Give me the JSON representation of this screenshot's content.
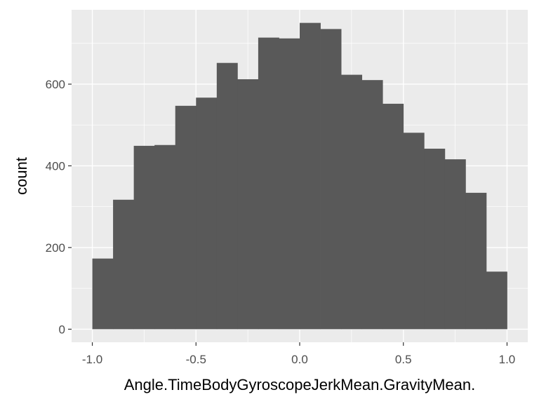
{
  "chart_data": {
    "type": "bar",
    "title": "",
    "xlabel": "Angle.TimeBodyGyroscopeJerkMean.GravityMean.",
    "ylabel": "count",
    "xlim": [
      -1.1,
      1.1
    ],
    "ylim": [
      -32,
      782
    ],
    "bins": [
      {
        "x0": -1.0,
        "x1": -0.9,
        "count": 173
      },
      {
        "x0": -0.9,
        "x1": -0.8,
        "count": 317
      },
      {
        "x0": -0.8,
        "x1": -0.7,
        "count": 449
      },
      {
        "x0": -0.7,
        "x1": -0.6,
        "count": 451
      },
      {
        "x0": -0.6,
        "x1": -0.5,
        "count": 547
      },
      {
        "x0": -0.5,
        "x1": -0.4,
        "count": 567
      },
      {
        "x0": -0.4,
        "x1": -0.3,
        "count": 652
      },
      {
        "x0": -0.3,
        "x1": -0.2,
        "count": 612
      },
      {
        "x0": -0.2,
        "x1": -0.1,
        "count": 714
      },
      {
        "x0": -0.1,
        "x1": 0.0,
        "count": 712
      },
      {
        "x0": 0.0,
        "x1": 0.1,
        "count": 750
      },
      {
        "x0": 0.1,
        "x1": 0.2,
        "count": 735
      },
      {
        "x0": 0.2,
        "x1": 0.3,
        "count": 623
      },
      {
        "x0": 0.3,
        "x1": 0.4,
        "count": 610
      },
      {
        "x0": 0.4,
        "x1": 0.5,
        "count": 552
      },
      {
        "x0": 0.5,
        "x1": 0.6,
        "count": 481
      },
      {
        "x0": 0.6,
        "x1": 0.7,
        "count": 442
      },
      {
        "x0": 0.7,
        "x1": 0.8,
        "count": 416
      },
      {
        "x0": 0.8,
        "x1": 0.9,
        "count": 334
      },
      {
        "x0": 0.9,
        "x1": 1.0,
        "count": 141
      }
    ],
    "x_ticks": [
      {
        "value": -1.0,
        "label": "-1.0"
      },
      {
        "value": -0.5,
        "label": "-0.5"
      },
      {
        "value": 0.0,
        "label": "0.0"
      },
      {
        "value": 0.5,
        "label": "0.5"
      },
      {
        "value": 1.0,
        "label": "1.0"
      }
    ],
    "y_ticks": [
      {
        "value": 0,
        "label": "0"
      },
      {
        "value": 200,
        "label": "200"
      },
      {
        "value": 400,
        "label": "400"
      },
      {
        "value": 600,
        "label": "600"
      }
    ],
    "grid": true,
    "legend": "none",
    "colors": {
      "panel_background": "#ebebeb",
      "grid_major": "#ffffff",
      "bar_fill": "#595959",
      "tick_text": "#4d4d4d",
      "tick_mark": "#333333",
      "axis_title": "#000000"
    }
  }
}
